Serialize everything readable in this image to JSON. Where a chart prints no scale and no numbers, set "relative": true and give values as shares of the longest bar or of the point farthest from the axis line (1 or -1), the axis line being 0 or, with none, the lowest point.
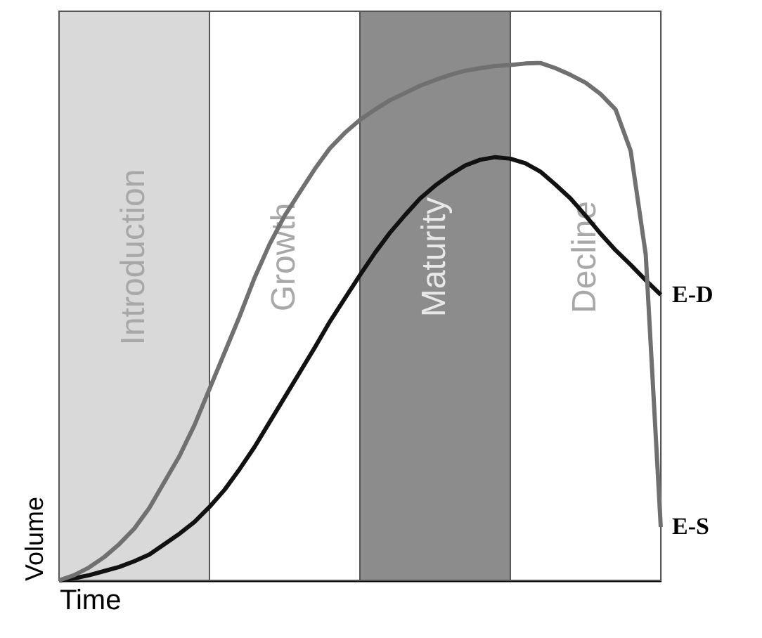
{
  "chart_data": {
    "type": "line",
    "relative": true,
    "xlabel": "Time",
    "ylabel": "Volume",
    "categories": [
      null,
      null,
      null,
      null,
      null,
      null,
      null,
      null,
      null,
      null,
      null,
      null,
      null,
      null,
      null,
      null,
      null,
      null,
      null,
      null,
      null,
      null,
      null,
      null,
      null,
      null,
      null,
      null,
      null,
      null,
      null,
      null,
      null,
      null,
      null,
      null,
      null,
      null,
      null,
      null,
      null
    ],
    "series": [
      {
        "name": "E-D",
        "color": "#111111",
        "values": [
          0,
          0.004,
          0.01,
          0.018,
          0.026,
          0.037,
          0.05,
          0.07,
          0.09,
          0.113,
          0.142,
          0.175,
          0.215,
          0.258,
          0.306,
          0.354,
          0.402,
          0.45,
          0.5,
          0.545,
          0.59,
          0.633,
          0.672,
          0.706,
          0.738,
          0.763,
          0.784,
          0.802,
          0.813,
          0.818,
          0.815,
          0.806,
          0.79,
          0.765,
          0.738,
          0.705,
          0.67,
          0.638,
          0.61,
          0.58,
          0.552
        ]
      },
      {
        "name": "E-S",
        "color": "#707070",
        "values": [
          0,
          0.01,
          0.025,
          0.045,
          0.07,
          0.1,
          0.14,
          0.19,
          0.24,
          0.3,
          0.37,
          0.44,
          0.51,
          0.585,
          0.65,
          0.705,
          0.75,
          0.795,
          0.835,
          0.865,
          0.89,
          0.91,
          0.928,
          0.942,
          0.956,
          0.967,
          0.977,
          0.985,
          0.99,
          0.994,
          0.996,
          0.999,
          1,
          0.99,
          0.977,
          0.962,
          0.94,
          0.91,
          0.83,
          0.63,
          0.103
        ]
      }
    ],
    "annotations": [
      "Introduction",
      "Growth",
      "Maturity",
      "Decline"
    ]
  }
}
